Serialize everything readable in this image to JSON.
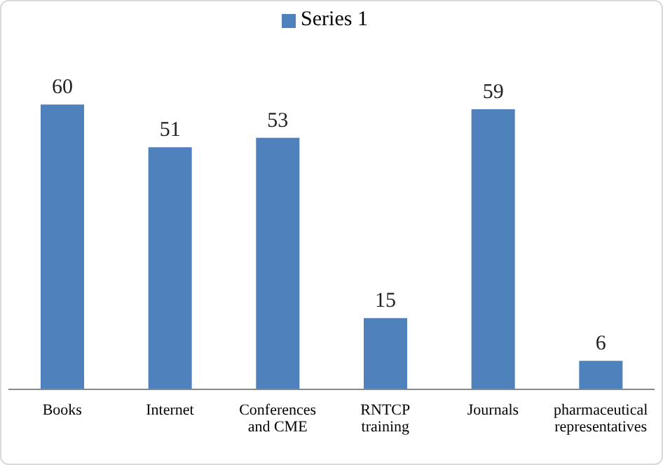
{
  "chart_data": {
    "type": "bar",
    "categories": [
      "Books",
      "Internet",
      "Conferences and CME",
      "RNTCP training",
      "Journals",
      "pharmaceutical representatives"
    ],
    "series": [
      {
        "name": "Series 1",
        "color": "#4f81bd",
        "values": [
          60,
          51,
          53,
          15,
          59,
          6
        ]
      }
    ],
    "data_labels": true,
    "legend": "top",
    "grid": false
  }
}
